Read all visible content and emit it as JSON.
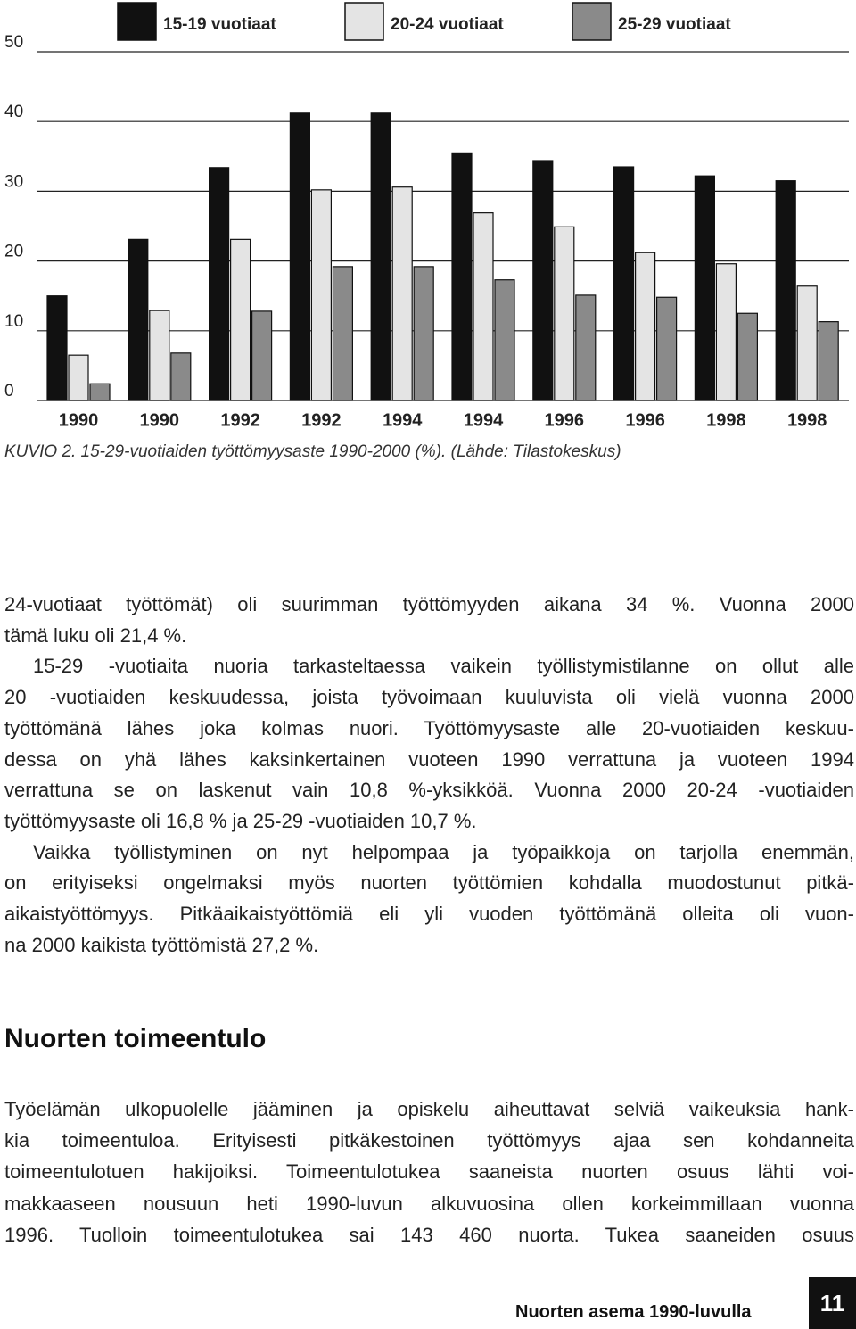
{
  "chart_data": {
    "type": "bar",
    "categories": [
      "1990",
      "1990",
      "1992",
      "1992",
      "1994",
      "1994",
      "1996",
      "1996",
      "1998",
      "1998"
    ],
    "series": [
      {
        "name": "15-19 vuotiaat",
        "color": "#111111",
        "values": [
          15.0,
          23.1,
          33.4,
          41.2,
          41.2,
          35.5,
          34.4,
          33.5,
          32.2,
          31.5
        ]
      },
      {
        "name": "20-24 vuotiaat",
        "color": "#e4e4e4",
        "values": [
          6.5,
          12.9,
          23.1,
          30.2,
          30.6,
          26.9,
          24.9,
          21.2,
          19.6,
          16.4
        ]
      },
      {
        "name": "25-29 vuotiaat",
        "color": "#8a8a8a",
        "values": [
          2.4,
          6.8,
          12.8,
          19.2,
          19.2,
          17.3,
          15.1,
          14.8,
          12.5,
          11.3
        ]
      }
    ],
    "ylim": [
      0,
      50
    ],
    "yticks": [
      0,
      10,
      20,
      30,
      40,
      50
    ],
    "grid": true,
    "caption": "KUVIO 2. 15-29-vuotiaiden työttömyysaste 1990-2000 (%). (Lähde: Tilastokeskus)"
  },
  "document": {
    "body_before": [
      {
        "lines": [
          "24-vuotiaat työttömät) oli suurimman työttömyyden aikana 34 %. Vuonna 2000",
          "tämä luku oli 21,4 %."
        ]
      },
      {
        "lines": [
          "15-29 -vuotiaita nuoria tarkasteltaessa vaikein työllistymistilanne on ollut alle",
          "20 -vuotiaiden keskuudessa, joista työvoimaan kuuluvista oli vielä vuonna 2000",
          "työttömänä lähes joka kolmas nuori. Työttömyysaste alle 20-vuotiaiden keskuu-",
          "dessa on yhä lähes kaksinkertainen vuoteen 1990 verrattuna ja vuoteen 1994",
          "verrattuna se on laskenut vain 10,8 %-yksikköä. Vuonna 2000 20-24 -vuotiaiden",
          "työttömyysaste oli 16,8 % ja 25-29 -vuotiaiden 10,7 %."
        ]
      },
      {
        "lines": [
          "Vaikka työllistyminen on nyt helpompaa ja työpaikkoja on tarjolla enemmän,",
          "on erityiseksi ongelmaksi myös nuorten työttömien kohdalla muodostunut pitkä-",
          "aikaistyöttömyys. Pitkäaikaistyöttömiä eli yli vuoden työttömänä olleita oli vuon-",
          "na 2000 kaikista työttömistä 27,2 %."
        ]
      }
    ],
    "heading": "Nuorten toimeentulo",
    "body_after": [
      {
        "lines": [
          "Työelämän ulkopuolelle jääminen ja opiskelu aiheuttavat selviä vaikeuksia hank-",
          "kia toimeentuloa. Erityisesti pitkäkestoinen työttömyys ajaa sen kohdanneita",
          "toimeentulotuen hakijoiksi. Toimeentulotukea saaneista nuorten osuus lähti voi-",
          "makkaaseen nousuun heti 1990-luvun alkuvuosina ollen korkeimmillaan vuonna",
          "1996. Tuolloin toimeentulotukea sai 143 460 nuorta. Tukea saaneiden osuus"
        ]
      }
    ]
  },
  "footer": {
    "title": "Nuorten asema 1990-luvulla",
    "page": "11"
  }
}
